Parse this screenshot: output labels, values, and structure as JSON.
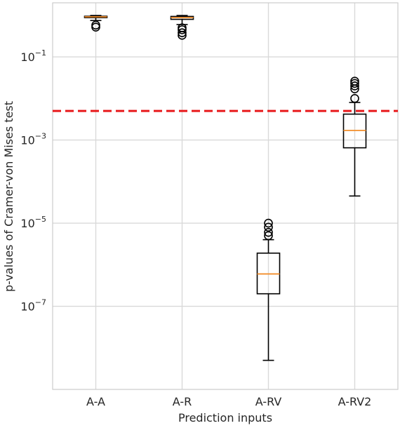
{
  "chart_data": {
    "type": "boxplot",
    "title": "",
    "xlabel": "Prediction inputs",
    "ylabel": "p-values of Cramer-von Mises test",
    "yscale": "log",
    "ylim": [
      1e-09,
      2.0
    ],
    "grid": true,
    "categories": [
      "A-A",
      "A-R",
      "A-RV",
      "A-RV2"
    ],
    "yticks": [
      {
        "value": 1e-07,
        "label": "10",
        "exp": "−7"
      },
      {
        "value": 1e-05,
        "label": "10",
        "exp": "−5"
      },
      {
        "value": 0.001,
        "label": "10",
        "exp": "−3"
      },
      {
        "value": 0.1,
        "label": "10",
        "exp": "−1"
      }
    ],
    "boxes": [
      {
        "category": "A-A",
        "whisker_low": 0.75,
        "q1": 0.88,
        "median": 0.92,
        "q3": 0.95,
        "whisker_high": 0.99,
        "outliers": [
          0.52,
          0.58
        ]
      },
      {
        "category": "A-R",
        "whisker_low": 0.6,
        "q1": 0.8,
        "median": 0.88,
        "q3": 0.94,
        "whisker_high": 0.99,
        "outliers": [
          0.33,
          0.38,
          0.45,
          0.5
        ]
      },
      {
        "category": "A-RV",
        "whisker_low": 5e-09,
        "q1": 2e-07,
        "median": 6e-07,
        "q3": 1.9e-06,
        "whisker_high": 4e-06,
        "outliers": [
          5e-06,
          6e-06,
          8e-06,
          1e-05
        ]
      },
      {
        "category": "A-RV2",
        "whisker_low": 4.5e-05,
        "q1": 0.00065,
        "median": 0.0017,
        "q3": 0.0042,
        "whisker_high": 0.008,
        "outliers": [
          0.01,
          0.017,
          0.02,
          0.023,
          0.026
        ]
      }
    ],
    "threshold": {
      "value": 0.005,
      "color": "#e8191b",
      "style": "dashed"
    },
    "colors": {
      "box": "#000000",
      "median": "#f28e2b",
      "grid": "#d9d9d9",
      "frame": "#cccccc"
    }
  }
}
